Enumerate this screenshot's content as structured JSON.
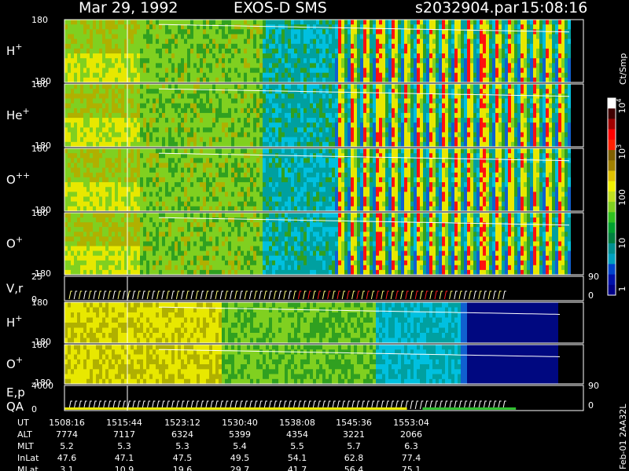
{
  "header": {
    "date": "Mar 29, 1992",
    "instrument": "EXOS-D SMS",
    "file": "s2032904.par",
    "time": "15:08:16"
  },
  "colorbar": {
    "unit_label": "Ct/Smp",
    "ticks": [
      {
        "label": "1",
        "value": 1
      },
      {
        "label": "10",
        "value": 10
      },
      {
        "label": "100",
        "value": 100
      },
      {
        "label": "10^3",
        "value": 1000
      },
      {
        "label": "10^4",
        "value": 10000
      }
    ],
    "colors": [
      "#000088",
      "#0011aa",
      "#0044cc",
      "#00a0c0",
      "#009090",
      "#008040",
      "#00a030",
      "#30c020",
      "#80d020",
      "#c0e020",
      "#f0f000",
      "#e0c000",
      "#a08000",
      "#806000",
      "#ff2000",
      "#ff0000",
      "#a00000",
      "#400000",
      "#ffffff"
    ]
  },
  "footer": {
    "rows": [
      {
        "label": "UT",
        "values": [
          "1508:16",
          "1515:44",
          "1523:12",
          "1530:40",
          "1538:08",
          "1545:36",
          "1553:04"
        ]
      },
      {
        "label": "ALT",
        "values": [
          "7774",
          "7117",
          "6324",
          "5399",
          "4354",
          "3221",
          "2066"
        ]
      },
      {
        "label": "MLT",
        "values": [
          "5.2",
          "5.3",
          "5.3",
          "5.4",
          "5.5",
          "5.7",
          "6.3"
        ]
      },
      {
        "label": "InLat",
        "values": [
          "47.6",
          "47.1",
          "47.5",
          "49.5",
          "54.1",
          "62.8",
          "77.4"
        ]
      },
      {
        "label": "MLat",
        "values": [
          "3.1",
          "10.9",
          "19.6",
          "29.7",
          "41.7",
          "56.4",
          "75.1"
        ]
      }
    ],
    "side_label": "Feb-01 2AA32L"
  },
  "chart_data": {
    "type": "heatmap",
    "x_axis_times": [
      "1508:16",
      "1515:44",
      "1523:12",
      "1530:40",
      "1538:08",
      "1545:36",
      "1553:04"
    ],
    "panels": [
      {
        "label": "H",
        "superscript": "+",
        "ylim_labels": [
          "180",
          "-180"
        ],
        "kind": "angle"
      },
      {
        "label": "He",
        "superscript": "+",
        "ylim_labels": [
          "180",
          "-180"
        ],
        "kind": "angle"
      },
      {
        "label": "O",
        "superscript": "++",
        "ylim_labels": [
          "180",
          "-180"
        ],
        "kind": "angle"
      },
      {
        "label": "O",
        "superscript": "+",
        "ylim_labels": [
          "180",
          "-180"
        ],
        "kind": "angle"
      },
      {
        "label": "V,r",
        "superscript": "",
        "ylim_labels": [
          "25",
          "0"
        ],
        "right_labels": [
          "90",
          "0"
        ],
        "kind": "line"
      },
      {
        "label": "H",
        "superscript": "+",
        "ylim_labels": [
          "180",
          "-180"
        ],
        "kind": "angle2"
      },
      {
        "label": "O",
        "superscript": "+",
        "ylim_labels": [
          "180",
          "-180"
        ],
        "kind": "angle2"
      },
      {
        "label": "E,p",
        "label2": "QA",
        "superscript": "",
        "ylim_labels": [
          "4000",
          "0"
        ],
        "right_labels": [
          "90",
          "0"
        ],
        "kind": "line2"
      }
    ]
  }
}
